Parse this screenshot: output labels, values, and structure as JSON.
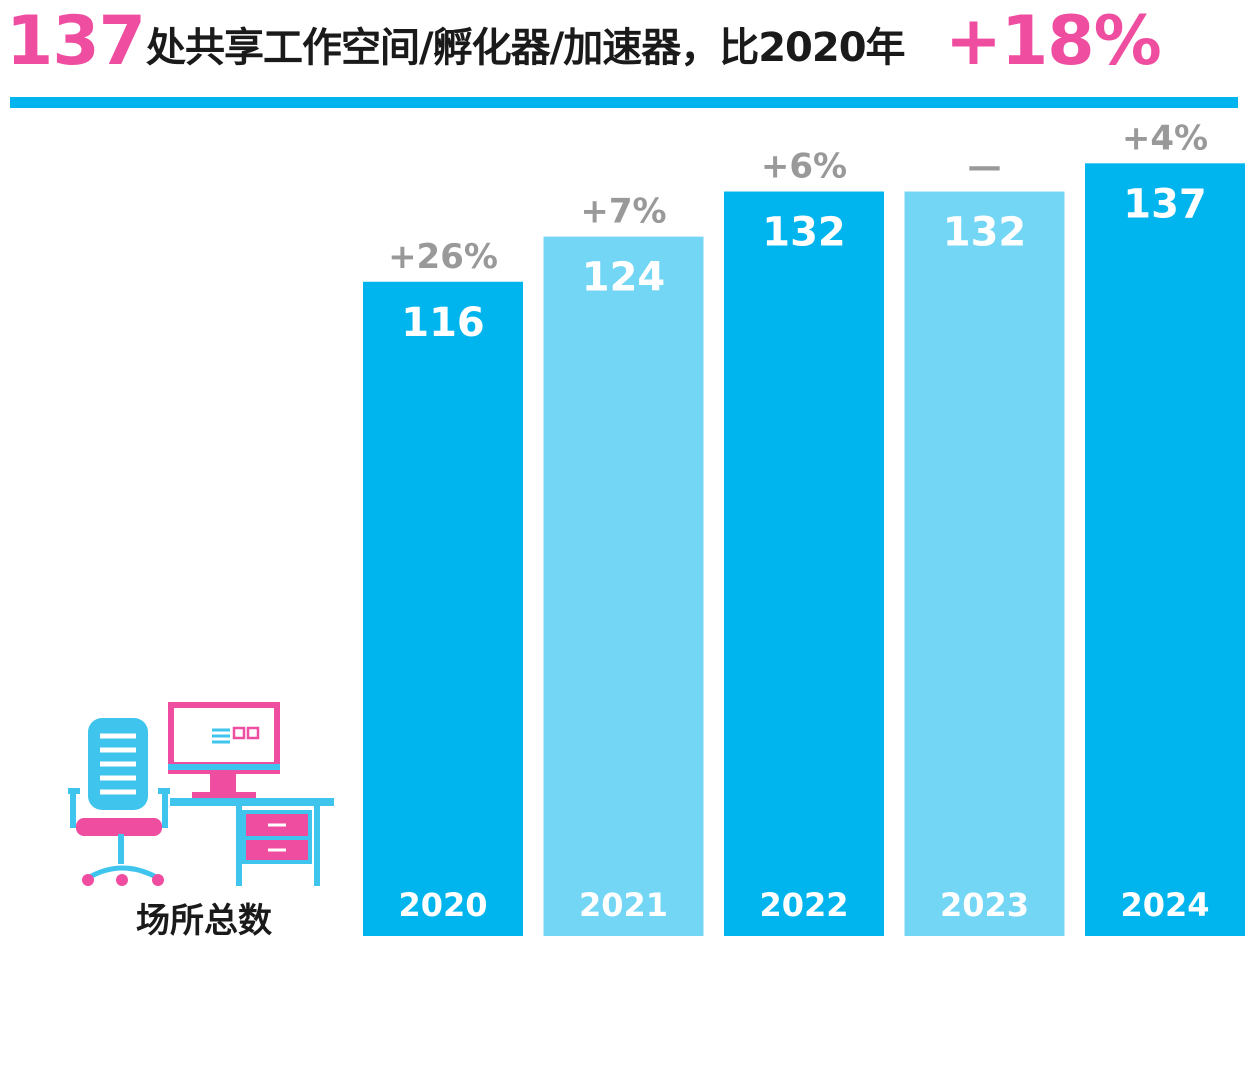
{
  "header": {
    "count": "137",
    "text": "处共享工作空间/孵化器/加速器，比2020年",
    "growth": "+18%"
  },
  "metric_label": "场所总数",
  "colors": {
    "dark_bar": "#00b5ee",
    "light_bar": "#74d6f5",
    "pink": "#ef4ea0",
    "change_text": "#999999",
    "rule": "#00b5ee"
  },
  "icon_name": "desk-computer-chair-icon",
  "chart_data": {
    "type": "bar",
    "categories": [
      "2020",
      "2021",
      "2022",
      "2023",
      "2024"
    ],
    "values": [
      116,
      124,
      132,
      132,
      137
    ],
    "value_labels": [
      "116",
      "124",
      "132",
      "132",
      "137"
    ],
    "changes": [
      "+26%",
      "+7%",
      "+6%",
      "—",
      "+4%"
    ],
    "bar_colors": [
      "#00b5ee",
      "#74d6f5",
      "#00b5ee",
      "#74d6f5",
      "#00b5ee"
    ],
    "grid": false
  }
}
